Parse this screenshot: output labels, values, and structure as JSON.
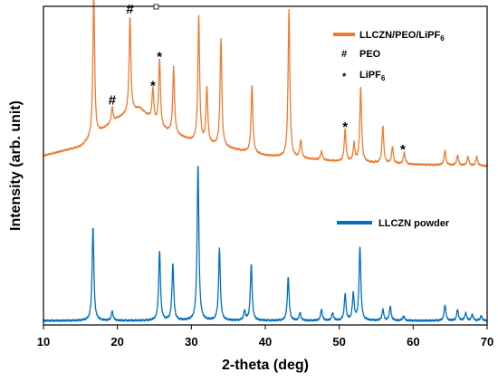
{
  "chart_data": {
    "type": "line",
    "title": "",
    "xlabel": "2-theta (deg)",
    "ylabel": "Intensity (arb. unit)",
    "xlim": [
      10,
      70
    ],
    "xticks": [
      10,
      20,
      30,
      40,
      50,
      60,
      70
    ],
    "y_tick_labels": "none",
    "grid": false,
    "legend": [
      {
        "label": "LLCZN/PEO/LiPF6",
        "kind": "line",
        "color": "#ED7D31"
      },
      {
        "label": "#",
        "desc": "PEO",
        "kind": "symbol"
      },
      {
        "label": "*",
        "desc": "LiPF6",
        "kind": "symbol"
      },
      {
        "label": "LLCZN powder",
        "kind": "line",
        "color": "#0070C0"
      }
    ],
    "series": [
      {
        "name": "LLCZN/PEO/LiPF6",
        "color": "#ED7D31",
        "baseline": [
          [
            10,
            0.08
          ],
          [
            15,
            0.14
          ],
          [
            20,
            0.33
          ],
          [
            23,
            0.4
          ],
          [
            26,
            0.26
          ],
          [
            30,
            0.18
          ],
          [
            40,
            0.08
          ],
          [
            50,
            0.04
          ],
          [
            60,
            0.02
          ],
          [
            70,
            0.01
          ]
        ],
        "peaks": [
          [
            16.8,
            0.98
          ],
          [
            19.3,
            0.1
          ],
          [
            21.7,
            0.65
          ],
          [
            24.8,
            0.22
          ],
          [
            25.7,
            0.46
          ],
          [
            27.6,
            0.45
          ],
          [
            31.0,
            0.85
          ],
          [
            32.1,
            0.38
          ],
          [
            34.0,
            0.73
          ],
          [
            38.2,
            0.46
          ],
          [
            43.2,
            1.0
          ],
          [
            44.8,
            0.12
          ],
          [
            47.6,
            0.06
          ],
          [
            50.8,
            0.22
          ],
          [
            52.0,
            0.12
          ],
          [
            52.9,
            0.51
          ],
          [
            55.9,
            0.25
          ],
          [
            57.2,
            0.11
          ],
          [
            58.8,
            0.08
          ],
          [
            64.3,
            0.1
          ],
          [
            66.0,
            0.07
          ],
          [
            67.4,
            0.06
          ],
          [
            68.6,
            0.06
          ]
        ]
      },
      {
        "name": "LLCZN powder",
        "color": "#0070C0",
        "baseline": [
          [
            10,
            0.01
          ],
          [
            70,
            0.01
          ]
        ],
        "peaks": [
          [
            16.7,
            0.6
          ],
          [
            19.3,
            0.06
          ],
          [
            25.7,
            0.45
          ],
          [
            27.5,
            0.36
          ],
          [
            30.9,
            1.0
          ],
          [
            33.8,
            0.46
          ],
          [
            37.2,
            0.06
          ],
          [
            38.1,
            0.36
          ],
          [
            43.1,
            0.28
          ],
          [
            44.7,
            0.05
          ],
          [
            47.6,
            0.07
          ],
          [
            49.1,
            0.05
          ],
          [
            50.8,
            0.17
          ],
          [
            51.9,
            0.17
          ],
          [
            52.8,
            0.47
          ],
          [
            55.9,
            0.07
          ],
          [
            56.9,
            0.09
          ],
          [
            58.7,
            0.03
          ],
          [
            64.3,
            0.1
          ],
          [
            66.0,
            0.07
          ],
          [
            67.1,
            0.05
          ],
          [
            68.0,
            0.04
          ],
          [
            69.2,
            0.03
          ]
        ]
      }
    ],
    "annotations": [
      {
        "text": "#",
        "x": 19.3,
        "series": "LLCZN/PEO/LiPF6",
        "meaning": "PEO"
      },
      {
        "text": "#",
        "x": 21.7,
        "series": "LLCZN/PEO/LiPF6",
        "meaning": "PEO"
      },
      {
        "text": "*",
        "x": 24.8,
        "series": "LLCZN/PEO/LiPF6",
        "meaning": "LiPF6"
      },
      {
        "text": "*",
        "x": 25.7,
        "series": "LLCZN/PEO/LiPF6",
        "meaning": "LiPF6"
      },
      {
        "text": "*",
        "x": 50.8,
        "series": "LLCZN/PEO/LiPF6",
        "meaning": "LiPF6"
      },
      {
        "text": "*",
        "x": 58.6,
        "series": "LLCZN/PEO/LiPF6",
        "meaning": "LiPF6"
      }
    ]
  }
}
